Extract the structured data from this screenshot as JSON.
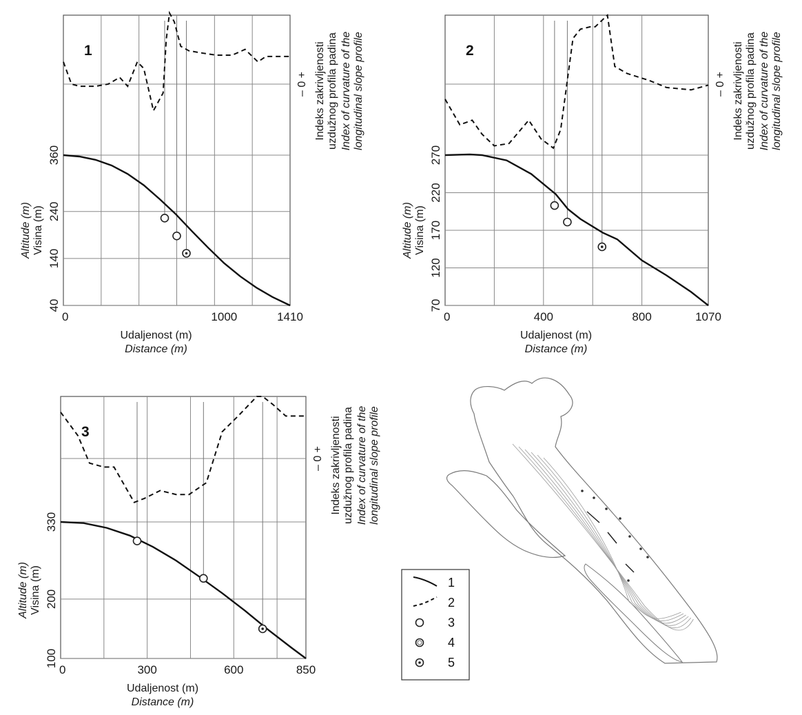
{
  "figure": {
    "ylabel_local": "Visina (m)",
    "ylabel_en": "Altitude (m)",
    "xlabel_local": "Udaljenost (m)",
    "xlabel_en": "Distance (m)",
    "right_label_local_1": "Indeks zakrivljenosti",
    "right_label_local_2": "uzdužnog profila padina",
    "right_label_en_1": "Index of curvature of the",
    "right_label_en_2": "longitudinal slope profile",
    "sign_plus": "+",
    "sign_zero": "0",
    "sign_minus": "–"
  },
  "legend": {
    "items": [
      {
        "symbol": "solid-line",
        "label": "1"
      },
      {
        "symbol": "dashed-line",
        "label": "2"
      },
      {
        "symbol": "open-circle",
        "label": "3"
      },
      {
        "symbol": "double-circle",
        "label": "4"
      },
      {
        "symbol": "dotted-circle",
        "label": "5"
      }
    ]
  },
  "map": {
    "description_visible": false,
    "colors": {
      "contour": "#9a9a9a",
      "coast": "#7a7a7a"
    }
  },
  "chart_data": [
    {
      "type": "line",
      "panel_label": "1",
      "xlim": [
        0,
        1410
      ],
      "x_ticks": [
        "0",
        "1000",
        "1410"
      ],
      "x_tick_values": [
        0,
        1000,
        1410
      ],
      "x_grid": [
        235,
        470,
        705,
        940,
        1175
      ],
      "ylim_altitude": [
        40,
        360
      ],
      "y_ticks": [
        "40",
        "140",
        "240",
        "360"
      ],
      "y_tick_values": [
        40,
        140,
        240,
        360
      ],
      "series": [
        {
          "kind": "altitude",
          "x": [
            0,
            100,
            200,
            300,
            400,
            500,
            600,
            700,
            800,
            900,
            1000,
            1100,
            1200,
            1300,
            1410
          ],
          "y": [
            360,
            357,
            350,
            338,
            320,
            296,
            266,
            234,
            198,
            163,
            130,
            102,
            78,
            58,
            40
          ]
        },
        {
          "kind": "curvature",
          "x": [
            0,
            50,
            100,
            200,
            280,
            350,
            400,
            460,
            500,
            560,
            620,
            640,
            660,
            690,
            730,
            780,
            860,
            950,
            1050,
            1130,
            1210,
            1260,
            1310,
            1350,
            1410
          ],
          "y": [
            0.0,
            -0.5,
            -0.55,
            -0.55,
            -0.5,
            -0.35,
            -0.55,
            0.0,
            -0.15,
            -1.1,
            -0.7,
            0.5,
            1.1,
            0.9,
            0.35,
            0.25,
            0.2,
            0.15,
            0.15,
            0.28,
            0.0,
            0.12,
            0.12,
            0.12,
            0.12
          ]
        }
      ],
      "curvature_ylim": [
        -2.1,
        1.05
      ],
      "points": [
        {
          "x": 630,
          "y": 226,
          "marker": "open-circle"
        },
        {
          "x": 705,
          "y": 188,
          "marker": "open-circle"
        },
        {
          "x": 765,
          "y": 151,
          "marker": "dotted-circle"
        }
      ]
    },
    {
      "type": "line",
      "panel_label": "2",
      "xlim": [
        0,
        1070
      ],
      "x_ticks": [
        "0",
        "400",
        "800",
        "1070"
      ],
      "x_tick_values": [
        0,
        400,
        800,
        1070
      ],
      "x_grid": [
        200,
        400,
        600,
        800
      ],
      "ylim_altitude": [
        70,
        270
      ],
      "y_ticks": [
        "70",
        "120",
        "170",
        "220",
        "270"
      ],
      "y_tick_values": [
        70,
        120,
        170,
        220,
        270
      ],
      "series": [
        {
          "kind": "altitude",
          "x": [
            0,
            100,
            150,
            250,
            350,
            450,
            500,
            550,
            640,
            700,
            800,
            900,
            1000,
            1070
          ],
          "y": [
            270,
            271,
            270,
            263,
            245,
            218,
            198,
            185,
            167,
            158,
            130,
            110,
            88,
            70
          ]
        },
        {
          "kind": "curvature",
          "x": [
            0,
            60,
            110,
            150,
            200,
            260,
            340,
            390,
            440,
            470,
            520,
            550,
            590,
            610,
            660,
            690,
            740,
            830,
            900,
            1000,
            1070
          ],
          "y": [
            -0.3,
            -0.85,
            -0.75,
            -1.05,
            -1.3,
            -1.25,
            -0.75,
            -1.15,
            -1.35,
            -0.95,
            1.0,
            1.2,
            1.25,
            1.25,
            1.5,
            0.4,
            0.25,
            0.1,
            -0.05,
            -0.1,
            0.0
          ]
        }
      ],
      "curvature_ylim": [
        -1.5,
        1.5
      ],
      "points": [
        {
          "x": 445,
          "y": 203,
          "marker": "open-circle"
        },
        {
          "x": 497,
          "y": 181,
          "marker": "open-circle"
        },
        {
          "x": 638,
          "y": 148,
          "marker": "dotted-circle"
        }
      ]
    },
    {
      "type": "line",
      "panel_label": "3",
      "xlim": [
        0,
        850
      ],
      "x_ticks": [
        "0",
        "300",
        "600",
        "850"
      ],
      "x_tick_values": [
        0,
        300,
        600,
        850
      ],
      "x_grid": [
        150,
        300,
        450,
        600,
        750
      ],
      "ylim_altitude": [
        100,
        330
      ],
      "y_ticks": [
        "100",
        "200",
        "330"
      ],
      "y_tick_values": [
        100,
        200,
        330
      ],
      "series": [
        {
          "kind": "altitude",
          "x": [
            0,
            80,
            160,
            240,
            320,
            400,
            480,
            560,
            640,
            720,
            800,
            850
          ],
          "y": [
            330,
            328,
            320,
            307,
            288,
            265,
            238,
            210,
            180,
            148,
            118,
            100
          ]
        },
        {
          "kind": "curvature",
          "x": [
            0,
            60,
            100,
            150,
            185,
            255,
            290,
            345,
            400,
            445,
            505,
            560,
            615,
            680,
            700,
            735,
            780,
            800,
            850
          ],
          "y": [
            0.35,
            0.05,
            -0.3,
            -0.35,
            -0.35,
            -0.8,
            -0.75,
            -0.65,
            -0.7,
            -0.7,
            -0.55,
            0.1,
            0.3,
            0.55,
            0.55,
            0.45,
            0.3,
            0.3,
            0.3
          ]
        }
      ],
      "curvature_ylim": [
        -1.05,
        0.55
      ],
      "points": [
        {
          "x": 265,
          "y": 298,
          "marker": "open-circle"
        },
        {
          "x": 495,
          "y": 235,
          "marker": "open-circle"
        },
        {
          "x": 700,
          "y": 150,
          "marker": "dotted-circle"
        }
      ]
    }
  ]
}
